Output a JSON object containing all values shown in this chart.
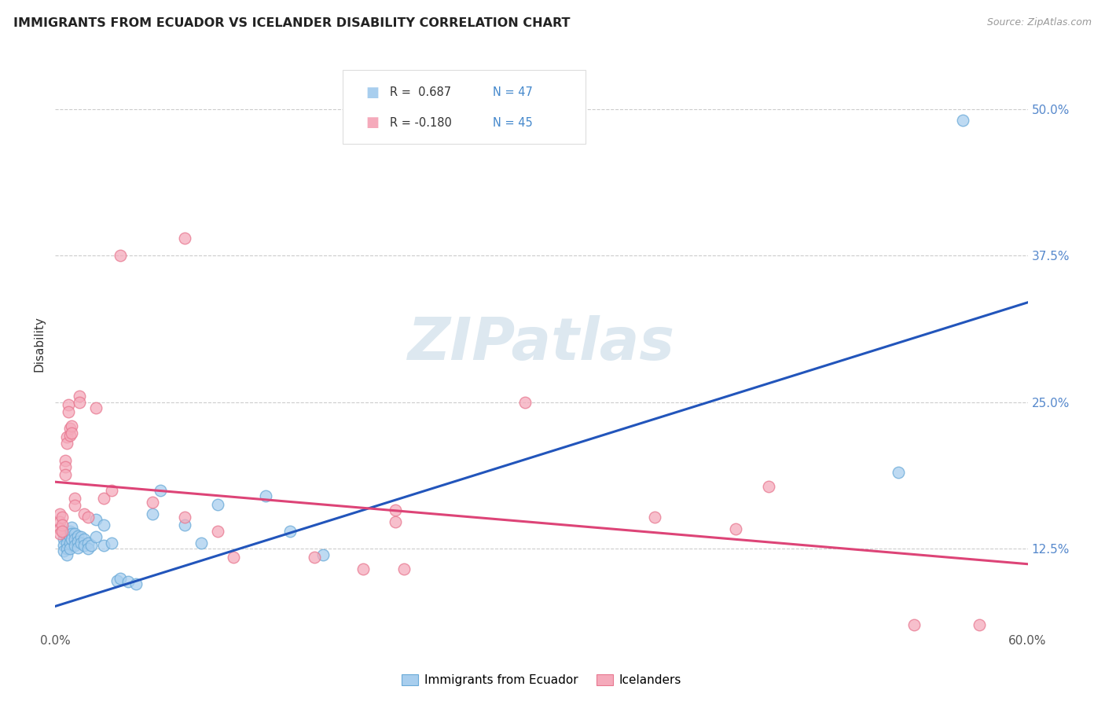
{
  "title": "IMMIGRANTS FROM ECUADOR VS ICELANDER DISABILITY CORRELATION CHART",
  "source": "Source: ZipAtlas.com",
  "ylabel": "Disability",
  "xlim": [
    0.0,
    0.6
  ],
  "ylim": [
    0.055,
    0.545
  ],
  "xtick_positions": [
    0.0,
    0.1,
    0.2,
    0.3,
    0.4,
    0.5,
    0.6
  ],
  "xtick_labels": [
    "0.0%",
    "",
    "",
    "",
    "",
    "",
    "60.0%"
  ],
  "ytick_positions": [
    0.125,
    0.25,
    0.375,
    0.5
  ],
  "ytick_labels": [
    "12.5%",
    "25.0%",
    "37.5%",
    "50.0%"
  ],
  "blue_color": "#A8CEEE",
  "pink_color": "#F5AABB",
  "blue_edge_color": "#6AAAD8",
  "pink_edge_color": "#E87890",
  "blue_line_color": "#2255BB",
  "pink_line_color": "#DD4477",
  "watermark_color": "#DDE8F0",
  "watermark": "ZIPatlas",
  "legend_labels": [
    "Immigrants from Ecuador",
    "Icelanders"
  ],
  "blue_scatter_x": [
    0.005,
    0.005,
    0.005,
    0.005,
    0.007,
    0.007,
    0.007,
    0.007,
    0.009,
    0.009,
    0.009,
    0.009,
    0.01,
    0.01,
    0.01,
    0.012,
    0.012,
    0.012,
    0.014,
    0.014,
    0.014,
    0.016,
    0.016,
    0.018,
    0.018,
    0.02,
    0.02,
    0.022,
    0.025,
    0.025,
    0.03,
    0.03,
    0.035,
    0.038,
    0.04,
    0.045,
    0.05,
    0.06,
    0.065,
    0.08,
    0.09,
    0.1,
    0.13,
    0.145,
    0.165,
    0.52,
    0.56
  ],
  "blue_scatter_y": [
    0.138,
    0.133,
    0.128,
    0.123,
    0.135,
    0.13,
    0.125,
    0.12,
    0.14,
    0.135,
    0.13,
    0.125,
    0.143,
    0.138,
    0.133,
    0.138,
    0.133,
    0.128,
    0.136,
    0.131,
    0.126,
    0.135,
    0.13,
    0.133,
    0.128,
    0.13,
    0.125,
    0.128,
    0.15,
    0.135,
    0.145,
    0.128,
    0.13,
    0.098,
    0.1,
    0.097,
    0.095,
    0.155,
    0.175,
    0.145,
    0.13,
    0.163,
    0.17,
    0.14,
    0.12,
    0.19,
    0.49
  ],
  "pink_scatter_x": [
    0.003,
    0.003,
    0.003,
    0.003,
    0.004,
    0.004,
    0.004,
    0.006,
    0.006,
    0.006,
    0.007,
    0.007,
    0.008,
    0.008,
    0.009,
    0.009,
    0.01,
    0.01,
    0.012,
    0.012,
    0.015,
    0.015,
    0.018,
    0.02,
    0.025,
    0.03,
    0.035,
    0.04,
    0.06,
    0.08,
    0.1,
    0.11,
    0.16,
    0.19,
    0.37,
    0.42,
    0.44,
    0.53,
    0.57,
    0.08,
    0.21,
    0.21,
    0.215,
    0.29
  ],
  "pink_scatter_y": [
    0.155,
    0.148,
    0.142,
    0.138,
    0.152,
    0.145,
    0.14,
    0.2,
    0.195,
    0.188,
    0.22,
    0.215,
    0.248,
    0.242,
    0.228,
    0.222,
    0.23,
    0.224,
    0.168,
    0.162,
    0.255,
    0.25,
    0.155,
    0.152,
    0.245,
    0.168,
    0.175,
    0.375,
    0.165,
    0.152,
    0.14,
    0.118,
    0.118,
    0.108,
    0.152,
    0.142,
    0.178,
    0.06,
    0.06,
    0.39,
    0.158,
    0.148,
    0.108,
    0.25
  ],
  "blue_line_x": [
    0.0,
    0.6
  ],
  "blue_line_y": [
    0.076,
    0.335
  ],
  "pink_line_x": [
    0.0,
    0.6
  ],
  "pink_line_y": [
    0.182,
    0.112
  ]
}
